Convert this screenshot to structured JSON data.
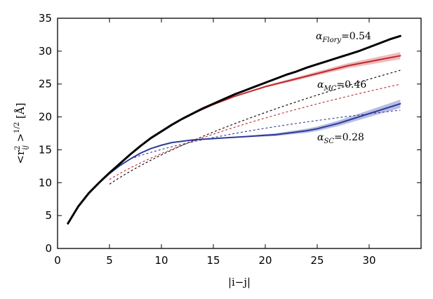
{
  "chart_data": {
    "type": "line",
    "xlabel": "|i−j|",
    "ylabel": "<r",
    "ylabel_sub": "ij",
    "ylabel_sup": "2",
    "ylabel_rest": " >",
    "ylabel_exp": "1/2",
    "ylabel_unit": " [Å]",
    "xlim": [
      0,
      35
    ],
    "ylim": [
      0,
      35
    ],
    "xticks": [
      0,
      5,
      10,
      15,
      20,
      25,
      30
    ],
    "yticks": [
      0,
      5,
      10,
      15,
      20,
      25,
      30,
      35
    ],
    "grid": false,
    "colors": {
      "flory": "#000000",
      "mc": "#c0282d",
      "sc": "#2e3a97",
      "mc_band": "#e8a0a2",
      "sc_band": "#9aa3d8"
    },
    "series": [
      {
        "key": "flory",
        "x": [
          1,
          2,
          3,
          4,
          5,
          6,
          7,
          8,
          9,
          10,
          11,
          12,
          13,
          14,
          15,
          16,
          17,
          18,
          19,
          20,
          21,
          22,
          23,
          24,
          25,
          26,
          27,
          28,
          29,
          30,
          31,
          32,
          33
        ],
        "values": [
          3.8,
          6.4,
          8.4,
          10.0,
          11.5,
          12.9,
          14.3,
          15.6,
          16.8,
          17.8,
          18.8,
          19.7,
          20.5,
          21.3,
          22.0,
          22.7,
          23.4,
          24.0,
          24.6,
          25.2,
          25.8,
          26.4,
          26.9,
          27.5,
          28.0,
          28.5,
          29.0,
          29.5,
          30.0,
          30.6,
          31.2,
          31.8,
          32.3
        ]
      },
      {
        "key": "mc",
        "x": [
          1,
          2,
          3,
          4,
          5,
          6,
          7,
          8,
          9,
          10,
          11,
          12,
          13,
          14,
          15,
          16,
          17,
          18,
          19,
          20,
          21,
          22,
          23,
          24,
          25,
          26,
          27,
          28,
          29,
          30,
          31,
          32,
          33
        ],
        "values": [
          3.8,
          6.4,
          8.4,
          10.0,
          11.5,
          12.9,
          14.3,
          15.6,
          16.8,
          17.8,
          18.8,
          19.7,
          20.5,
          21.2,
          21.9,
          22.5,
          23.1,
          23.6,
          24.1,
          24.6,
          25.0,
          25.4,
          25.8,
          26.2,
          26.6,
          27.0,
          27.4,
          27.8,
          28.1,
          28.4,
          28.7,
          29.0,
          29.3
        ]
      },
      {
        "key": "sc",
        "x": [
          1,
          2,
          3,
          4,
          5,
          6,
          7,
          8,
          9,
          10,
          11,
          12,
          13,
          14,
          15,
          16,
          17,
          18,
          19,
          20,
          21,
          22,
          23,
          24,
          25,
          26,
          27,
          28,
          29,
          30,
          31,
          32,
          33
        ],
        "values": [
          3.8,
          6.4,
          8.4,
          10.0,
          11.4,
          12.6,
          13.6,
          14.5,
          15.2,
          15.7,
          16.1,
          16.3,
          16.5,
          16.6,
          16.7,
          16.8,
          16.9,
          17.0,
          17.1,
          17.2,
          17.3,
          17.5,
          17.7,
          17.9,
          18.2,
          18.6,
          19.0,
          19.5,
          20.0,
          20.5,
          21.0,
          21.5,
          22.0
        ]
      }
    ],
    "fits": [
      {
        "key": "fit-flory",
        "prefactor": 4.1,
        "exponent": 0.54,
        "x_range": [
          5,
          33
        ]
      },
      {
        "key": "fit-mc",
        "prefactor": 5.0,
        "exponent": 0.46,
        "x_range": [
          5,
          33
        ]
      },
      {
        "key": "fit-sc",
        "prefactor": 7.9,
        "exponent": 0.28,
        "x_range": [
          7,
          33
        ]
      }
    ],
    "annotations": [
      {
        "key": "flory",
        "symbol": "α",
        "sub": "Flory",
        "eq": "=",
        "value": "0.54"
      },
      {
        "key": "mc",
        "symbol": "α",
        "sub": "MC",
        "eq": "=",
        "value": "0.46"
      },
      {
        "key": "sc",
        "symbol": "α",
        "sub": "SC",
        "eq": "=",
        "value": "0.28"
      }
    ]
  }
}
